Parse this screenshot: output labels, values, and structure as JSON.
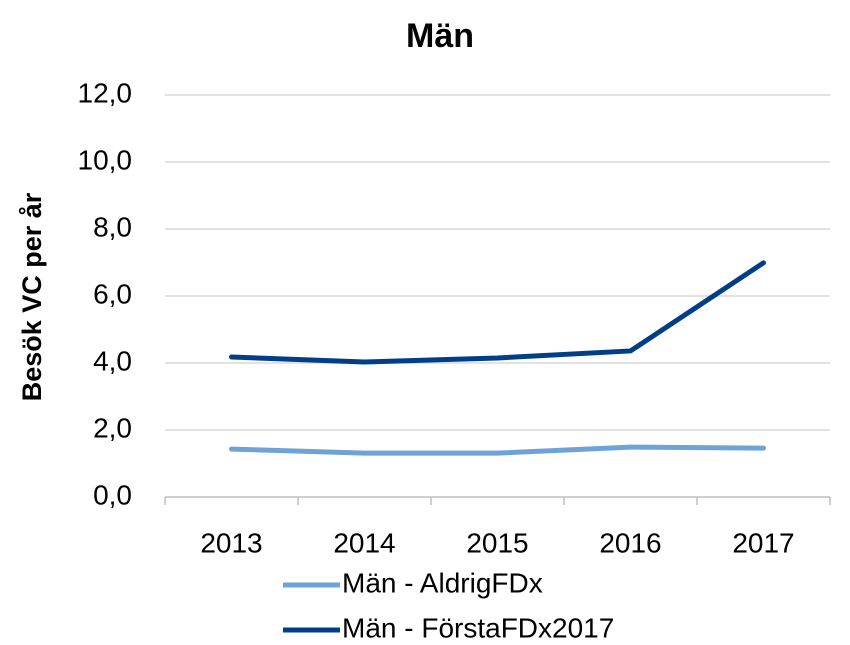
{
  "chart_data": {
    "type": "line",
    "title": "Män",
    "y_label": "Besök VC per år",
    "categories": [
      "2013",
      "2014",
      "2015",
      "2016",
      "2017"
    ],
    "series": [
      {
        "name": "Män - AldrigFDx",
        "color": "#6fa3d8",
        "values": [
          1.43,
          1.31,
          1.31,
          1.49,
          1.46
        ]
      },
      {
        "name": "Män - FörstaFDx2017",
        "color": "#003f87",
        "values": [
          4.18,
          4.03,
          4.15,
          4.36,
          6.99
        ]
      }
    ],
    "ylim": [
      0,
      12
    ],
    "yticks": [
      {
        "value": 0,
        "label": "0,0"
      },
      {
        "value": 2,
        "label": "2,0"
      },
      {
        "value": 4,
        "label": "4,0"
      },
      {
        "value": 6,
        "label": "6,0"
      },
      {
        "value": 8,
        "label": "8,0"
      },
      {
        "value": 10,
        "label": "10,0"
      },
      {
        "value": 12,
        "label": "12,0"
      }
    ],
    "grid": true,
    "legend": "bottom"
  }
}
